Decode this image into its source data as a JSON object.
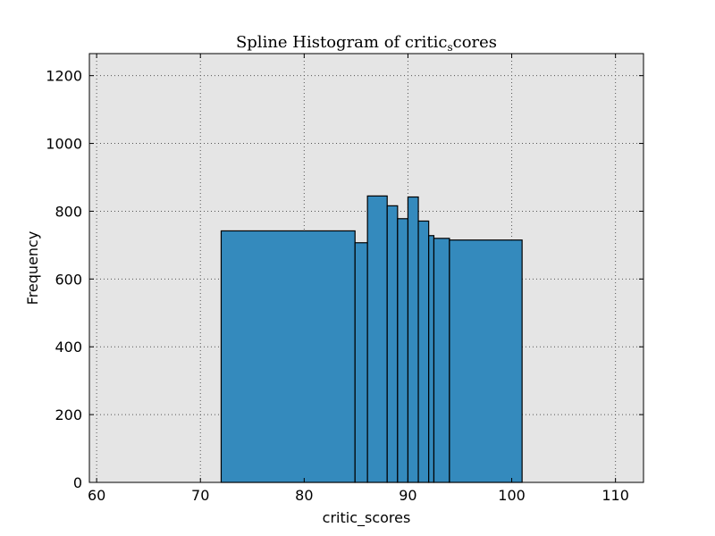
{
  "chart_data": {
    "type": "histogram",
    "title": "Spline Histogram of critic",
    "title_subscript": "s",
    "title_suffix": "cores",
    "xlabel": "critic_scores",
    "ylabel": "Frequency",
    "xlim": [
      59.3,
      112.7
    ],
    "ylim": [
      0,
      1265
    ],
    "x_ticks": [
      60,
      70,
      80,
      90,
      100,
      110
    ],
    "y_ticks": [
      0,
      200,
      400,
      600,
      800,
      1000,
      1200
    ],
    "grid": true,
    "bars": [
      {
        "x0": 72.0,
        "x1": 84.9,
        "value": 742
      },
      {
        "x0": 84.9,
        "x1": 86.1,
        "value": 707
      },
      {
        "x0": 86.1,
        "x1": 88.0,
        "value": 845
      },
      {
        "x0": 88.0,
        "x1": 89.0,
        "value": 816
      },
      {
        "x0": 89.0,
        "x1": 90.0,
        "value": 778
      },
      {
        "x0": 90.0,
        "x1": 91.0,
        "value": 842
      },
      {
        "x0": 91.0,
        "x1": 92.0,
        "value": 771
      },
      {
        "x0": 92.0,
        "x1": 92.5,
        "value": 728
      },
      {
        "x0": 92.5,
        "x1": 94.0,
        "value": 720
      },
      {
        "x0": 94.0,
        "x1": 101.0,
        "value": 715
      }
    ],
    "colors": {
      "bar_fill": "#348abd",
      "bar_edge": "#000000",
      "plot_background": "#e5e5e5",
      "grid": "#555555"
    }
  }
}
